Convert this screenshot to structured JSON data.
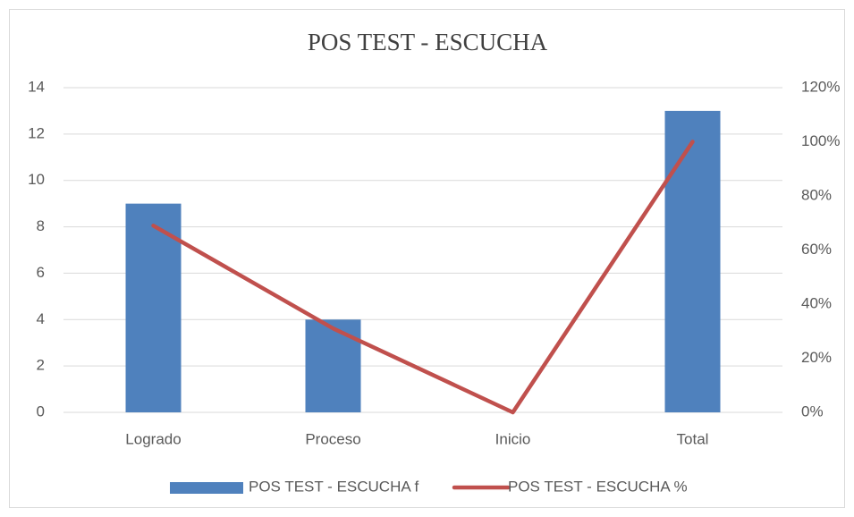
{
  "chart_data": {
    "type": "bar",
    "title": "POS TEST - ESCUCHA",
    "categories": [
      "Logrado",
      "Proceso",
      "Inicio",
      "Total"
    ],
    "series": [
      {
        "name": "POS TEST - ESCUCHA f",
        "type": "bar",
        "color": "#4f81bd",
        "values": [
          9,
          4,
          0,
          13
        ]
      },
      {
        "name": "POS TEST - ESCUCHA %",
        "type": "line",
        "axis": "y2",
        "color": "#c0504d",
        "values": [
          69,
          31,
          0,
          100
        ]
      }
    ],
    "ylim": [
      0,
      14
    ],
    "yticks": [
      0,
      2,
      4,
      6,
      8,
      10,
      12,
      14
    ],
    "y2lim": [
      0,
      120
    ],
    "y2ticks": [
      {
        "value": 0,
        "label": "0%"
      },
      {
        "value": 20,
        "label": "20%"
      },
      {
        "value": 40,
        "label": "40%"
      },
      {
        "value": 60,
        "label": "60%"
      },
      {
        "value": 80,
        "label": "80%"
      },
      {
        "value": 100,
        "label": "100%"
      },
      {
        "value": 120,
        "label": "120%"
      }
    ],
    "grid": true,
    "legend": "bottom"
  }
}
